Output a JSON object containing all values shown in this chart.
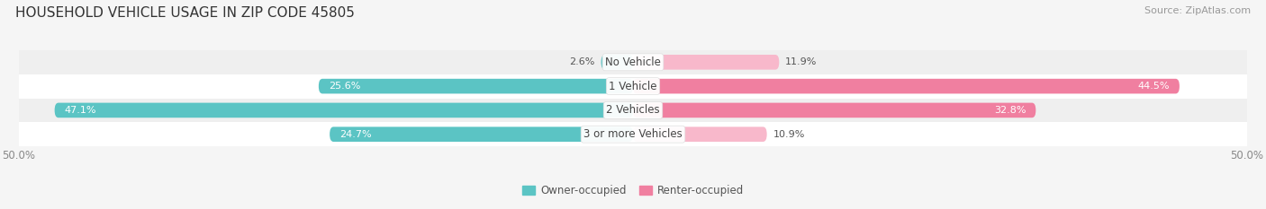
{
  "title": "HOUSEHOLD VEHICLE USAGE IN ZIP CODE 45805",
  "source": "Source: ZipAtlas.com",
  "categories": [
    "No Vehicle",
    "1 Vehicle",
    "2 Vehicles",
    "3 or more Vehicles"
  ],
  "owner_values": [
    2.6,
    25.6,
    47.1,
    24.7
  ],
  "renter_values": [
    11.9,
    44.5,
    32.8,
    10.9
  ],
  "owner_color": "#5BC4C4",
  "renter_color": "#F07FA0",
  "renter_color_light": "#F8B8CB",
  "owner_label": "Owner-occupied",
  "renter_label": "Renter-occupied",
  "axis_min": -50.0,
  "axis_max": 50.0,
  "x_tick_labels": [
    "50.0%",
    "50.0%"
  ],
  "title_fontsize": 11,
  "source_fontsize": 8,
  "label_fontsize": 8.5,
  "value_fontsize": 8,
  "tick_fontsize": 8.5,
  "legend_fontsize": 8.5,
  "bar_height": 0.62,
  "background_color": "#F5F5F5",
  "row_bg_colors": [
    "#EFEFEF",
    "#FFFFFF",
    "#EFEFEF",
    "#FFFFFF"
  ]
}
